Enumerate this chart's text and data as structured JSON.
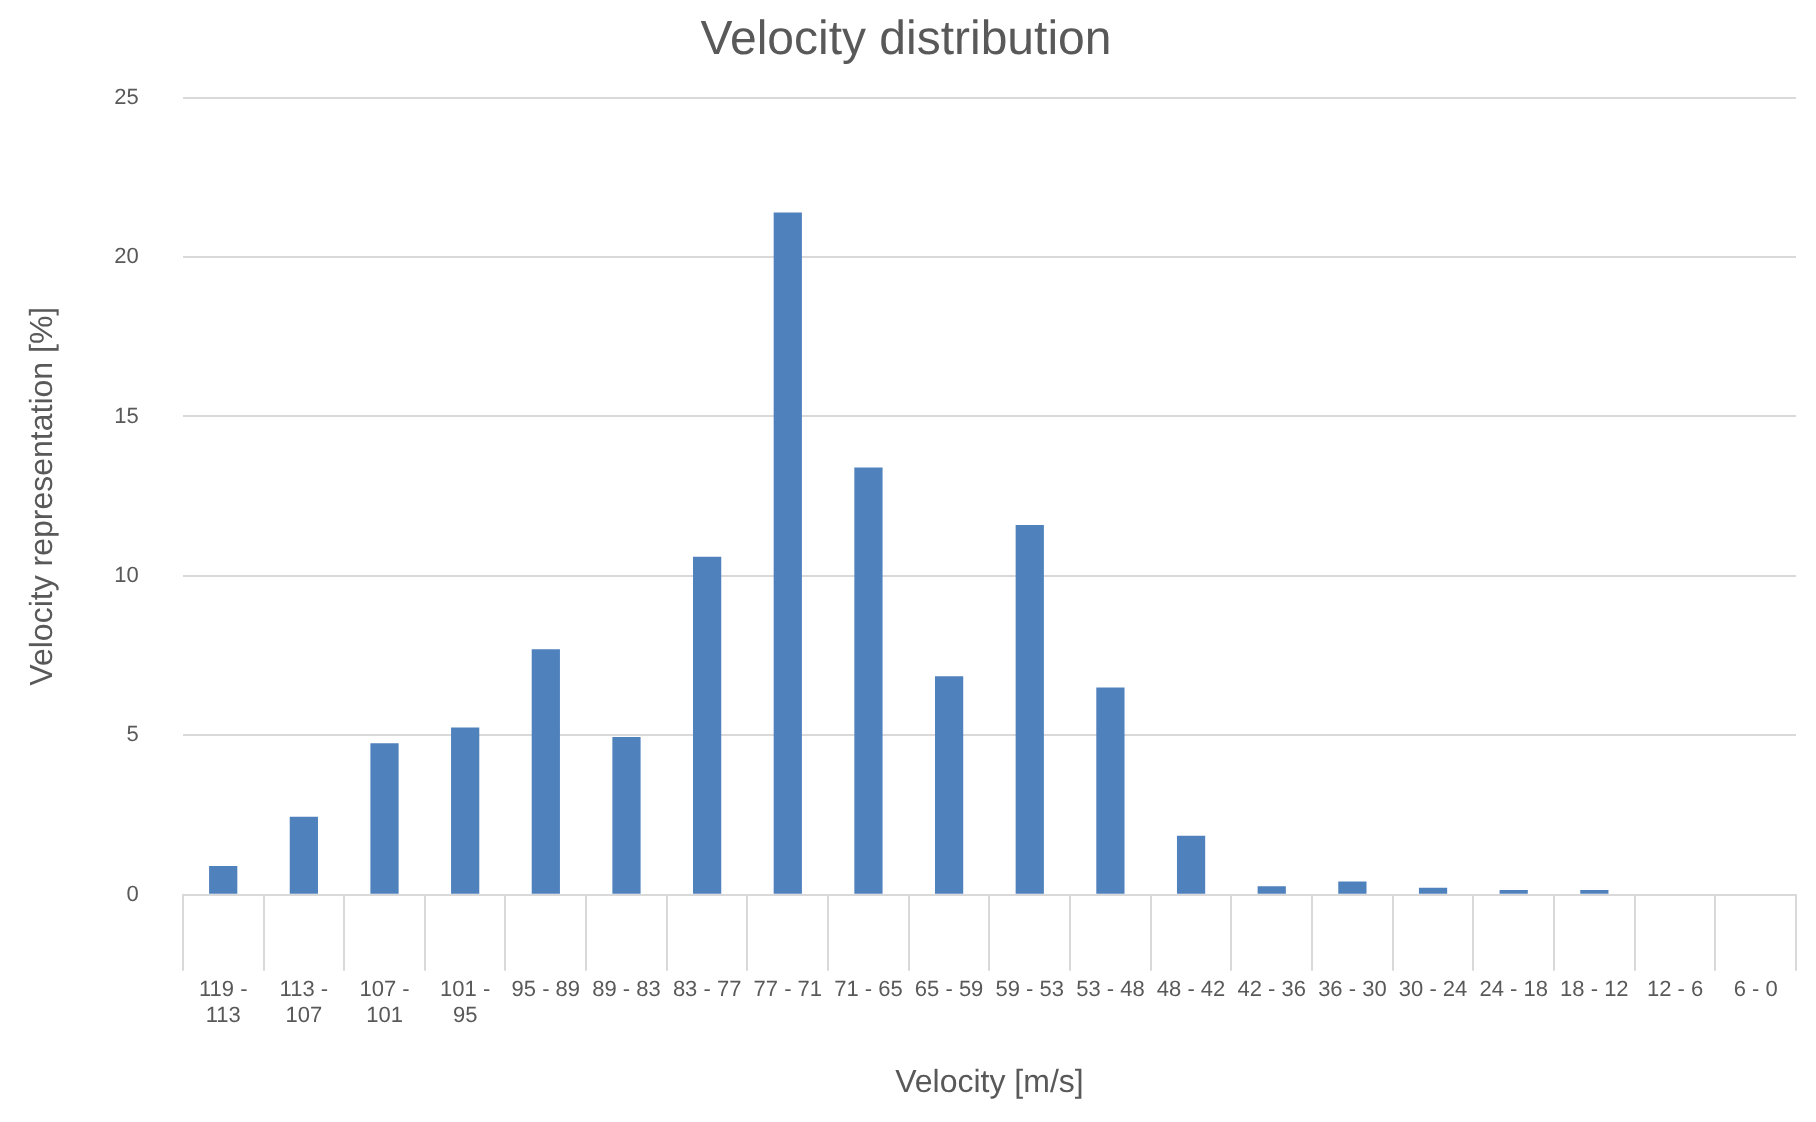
{
  "chart_data": {
    "type": "bar",
    "title": "Velocity distribution",
    "xlabel": "Velocity [m/s]",
    "ylabel": "Velocity representation [%]",
    "categories": [
      "119 - 113",
      "113 - 107",
      "107 - 101",
      "101 - 95",
      "95 - 89",
      "89 - 83",
      "83 - 77",
      "77 - 71",
      "71 - 65",
      "65 - 59",
      "59 - 53",
      "53 - 48",
      "48 - 42",
      "42 - 36",
      "36 - 30",
      "30 - 24",
      "24 - 18",
      "18 - 12",
      "12 - 6",
      "6 - 0"
    ],
    "values": [
      0.9,
      2.45,
      4.75,
      5.25,
      7.7,
      4.95,
      10.6,
      21.4,
      13.4,
      6.85,
      11.6,
      6.5,
      1.85,
      0.27,
      0.42,
      0.22,
      0.15,
      0.15,
      0,
      0
    ],
    "color": "#4f81bd",
    "ylim": [
      0,
      25
    ],
    "yticks": [
      0,
      5,
      10,
      15,
      20,
      25
    ],
    "grid": "y",
    "legend": false
  }
}
